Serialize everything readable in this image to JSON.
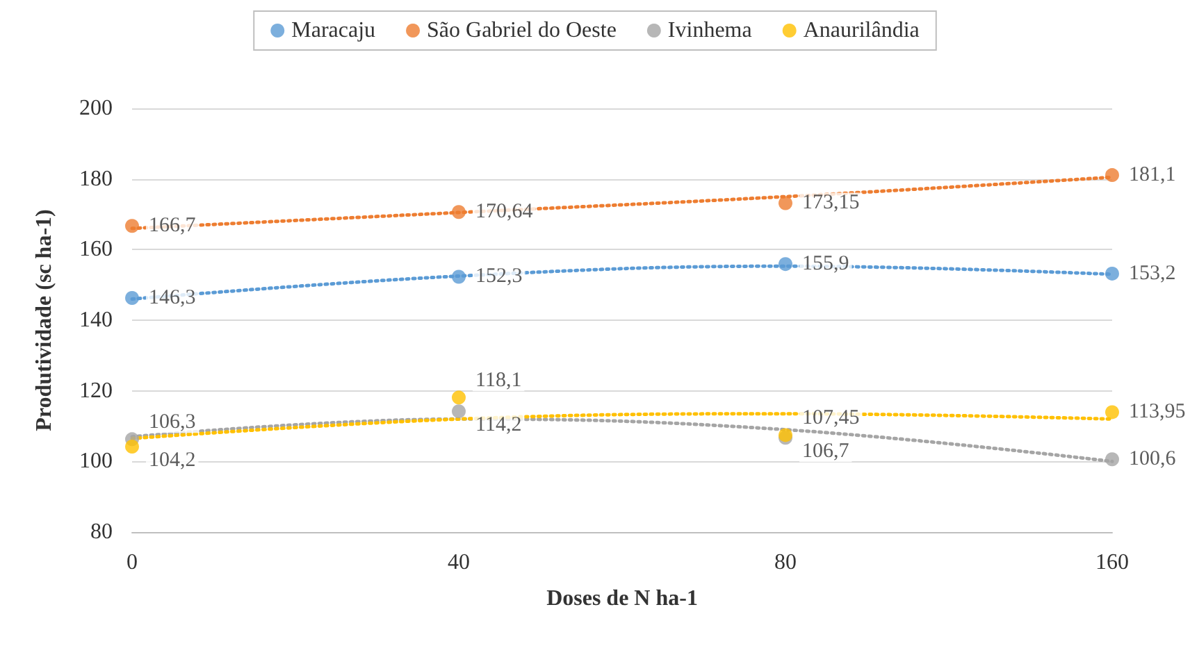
{
  "chart_data": {
    "type": "scatter",
    "xlabel": "Doses de N ha-1",
    "ylabel": "Produtividade (sc ha-1)",
    "categories": [
      "0",
      "40",
      "80",
      "160"
    ],
    "ylim": [
      80,
      200
    ],
    "yticks": [
      80,
      100,
      120,
      140,
      160,
      180,
      200
    ],
    "grid": "y",
    "legend": "top",
    "marker": "circle",
    "series": [
      {
        "name": "Maracaju",
        "color": "#5b9bd5",
        "values": [
          146.3,
          152.3,
          155.9,
          153.2
        ],
        "value_labels": [
          "146,3",
          "152,3",
          "155,9",
          "153,2"
        ]
      },
      {
        "name": "São Gabriel do Oeste",
        "color": "#ed7d31",
        "values": [
          166.7,
          170.64,
          173.15,
          181.1
        ],
        "value_labels": [
          "166,7",
          "170,64",
          "173,15",
          "181,1"
        ]
      },
      {
        "name": "Ivinhema",
        "color": "#a5a5a5",
        "values": [
          106.3,
          114.2,
          106.7,
          100.6
        ],
        "value_labels": [
          "106,3",
          "114,2",
          "106,7",
          "100,6"
        ]
      },
      {
        "name": "Anaurilândia",
        "color": "#ffc000",
        "values": [
          104.2,
          118.1,
          107.45,
          113.95
        ],
        "value_labels": [
          "104,2",
          "118,1",
          "107,45",
          "113,95"
        ]
      },
      {
        "type": "line",
        "color": "#5b9bd5",
        "line_style": "dotted",
        "marker": "none",
        "values": [
          146,
          152.5,
          155.3,
          153
        ]
      },
      {
        "type": "line",
        "color": "#ed7d31",
        "line_style": "dotted",
        "marker": "none",
        "values": [
          166,
          170.5,
          175,
          180.5
        ]
      },
      {
        "type": "line",
        "color": "#a5a5a5",
        "line_style": "dotted",
        "marker": "none",
        "values": [
          107,
          112,
          109,
          100
        ]
      },
      {
        "type": "line",
        "color": "#ffc000",
        "line_style": "dotted",
        "marker": "none",
        "values": [
          106.5,
          112,
          113.5,
          112
        ]
      }
    ]
  }
}
